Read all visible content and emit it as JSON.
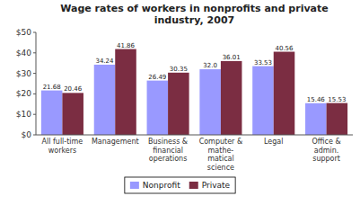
{
  "chart_data": {
    "type": "bar",
    "title": "Wage rates of workers in nonprofits and private\nindustry, 2007",
    "categories": [
      "All full-time\nworkers",
      "Management",
      "Business &\nfinancial\noperations",
      "Computer &\nmathe-\nmatical\nscience",
      "Legal",
      "Office &\nadmin.\nsupport"
    ],
    "series": [
      {
        "name": "Nonprofit",
        "color": "#9999FF",
        "values": [
          21.68,
          34.24,
          26.49,
          32.0,
          33.53,
          15.46
        ],
        "value_labels": [
          "21.68",
          "34.24",
          "26.49",
          "32.0",
          "33.53",
          "15.46"
        ]
      },
      {
        "name": "Private",
        "color": "#7B2D42",
        "values": [
          20.46,
          41.86,
          30.35,
          36.01,
          40.56,
          15.53
        ]
      }
    ],
    "ylim": [
      0,
      50
    ],
    "yticks": [
      {
        "value": 0,
        "label": "$0"
      },
      {
        "value": 10,
        "label": "$10"
      },
      {
        "value": 20,
        "label": "$20"
      },
      {
        "value": 30,
        "label": "$30"
      },
      {
        "value": 40,
        "label": "$40"
      },
      {
        "value": 50,
        "label": "$50"
      }
    ],
    "grid": false,
    "data_labels": true,
    "legend": "bottom"
  }
}
